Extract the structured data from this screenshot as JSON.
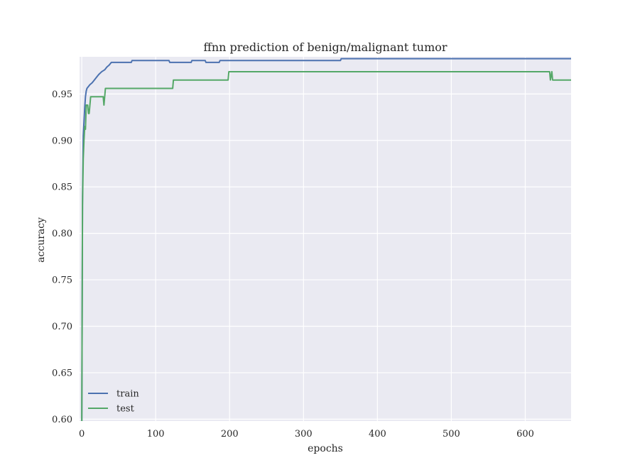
{
  "chart_data": {
    "type": "line",
    "title": "ffnn prediction of benign/malignant tumor",
    "xlabel": "epochs",
    "ylabel": "accuracy",
    "xlim": [
      -3,
      662
    ],
    "ylim": [
      0.598,
      0.99
    ],
    "xticks": [
      0,
      100,
      200,
      300,
      400,
      500,
      600
    ],
    "yticks": [
      0.6,
      0.65,
      0.7,
      0.75,
      0.8,
      0.85,
      0.9,
      0.95
    ],
    "grid": true,
    "legend_position": "lower-left",
    "colors": {
      "plot_bg": "#eaeaf2",
      "grid": "#ffffff",
      "train": "#4c72b0",
      "test": "#55a868"
    },
    "series": [
      {
        "name": "train",
        "color": "#4c72b0",
        "points": [
          [
            0,
            0.585
          ],
          [
            1,
            0.84
          ],
          [
            2,
            0.905
          ],
          [
            3,
            0.92
          ],
          [
            4,
            0.935
          ],
          [
            5,
            0.947
          ],
          [
            6,
            0.953
          ],
          [
            7,
            0.956
          ],
          [
            9,
            0.958
          ],
          [
            11,
            0.96
          ],
          [
            14,
            0.962
          ],
          [
            17,
            0.965
          ],
          [
            20,
            0.968
          ],
          [
            23,
            0.971
          ],
          [
            27,
            0.974
          ],
          [
            31,
            0.976
          ],
          [
            34,
            0.979
          ],
          [
            37,
            0.981
          ],
          [
            40,
            0.984
          ],
          [
            67,
            0.984
          ],
          [
            68,
            0.986
          ],
          [
            118,
            0.986
          ],
          [
            119,
            0.984
          ],
          [
            148,
            0.984
          ],
          [
            149,
            0.986
          ],
          [
            167,
            0.986
          ],
          [
            168,
            0.984
          ],
          [
            186,
            0.984
          ],
          [
            187,
            0.986
          ],
          [
            350,
            0.986
          ],
          [
            351,
            0.988
          ],
          [
            662,
            0.988
          ]
        ]
      },
      {
        "name": "test",
        "color": "#55a868",
        "points": [
          [
            0,
            0.585
          ],
          [
            1,
            0.83
          ],
          [
            2,
            0.88
          ],
          [
            3,
            0.9
          ],
          [
            4,
            0.915
          ],
          [
            5,
            0.912
          ],
          [
            6,
            0.938
          ],
          [
            8,
            0.938
          ],
          [
            9,
            0.929
          ],
          [
            10,
            0.929
          ],
          [
            12,
            0.947
          ],
          [
            29,
            0.947
          ],
          [
            30,
            0.938
          ],
          [
            32,
            0.956
          ],
          [
            123,
            0.956
          ],
          [
            124,
            0.965
          ],
          [
            198,
            0.965
          ],
          [
            199,
            0.974
          ],
          [
            633,
            0.974
          ],
          [
            634,
            0.965
          ],
          [
            636,
            0.974
          ],
          [
            637,
            0.965
          ],
          [
            662,
            0.965
          ]
        ]
      }
    ]
  }
}
